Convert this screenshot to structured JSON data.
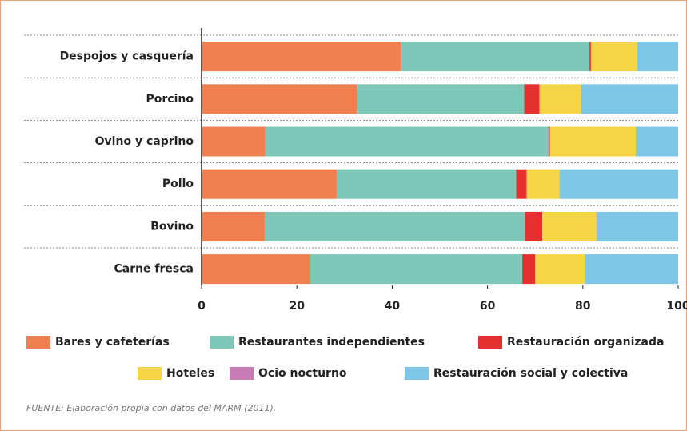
{
  "chart_data": {
    "type": "stacked_barh",
    "categories": [
      "Despojos y casquería",
      "Porcino",
      "Ovino y caprino",
      "Pollo",
      "Bovino",
      "Carne fresca"
    ],
    "series": [
      {
        "name": "Bares y cafeterías",
        "color": "#f0804f",
        "values": [
          41.8,
          32.6,
          13.4,
          28.4,
          13.3,
          22.8
        ]
      },
      {
        "name": "Restaurantes independientes",
        "color": "#7dc8b8",
        "values": [
          39.6,
          35.1,
          59.4,
          37.6,
          54.5,
          44.5
        ]
      },
      {
        "name": "Restauración organizada",
        "color": "#e53030",
        "values": [
          0.3,
          3.2,
          0.3,
          2.2,
          3.7,
          2.7
        ]
      },
      {
        "name": "Hoteles",
        "color": "#f5d547",
        "values": [
          9.7,
          8.7,
          18.0,
          6.9,
          11.4,
          10.4
        ]
      },
      {
        "name": "Ocio nocturno",
        "color": "#c87ab5",
        "values": [
          0,
          0,
          0,
          0,
          0,
          0
        ]
      },
      {
        "name": "Restauración social y colectiva",
        "color": "#7cc7e8",
        "values": [
          8.6,
          20.4,
          8.9,
          24.9,
          17.1,
          19.6
        ]
      }
    ],
    "xlim": [
      0,
      100
    ],
    "xticks": [
      0,
      20,
      40,
      60,
      80,
      100
    ],
    "source": "FUENTE: Elaboración propia con datos del MARM (2011)."
  }
}
